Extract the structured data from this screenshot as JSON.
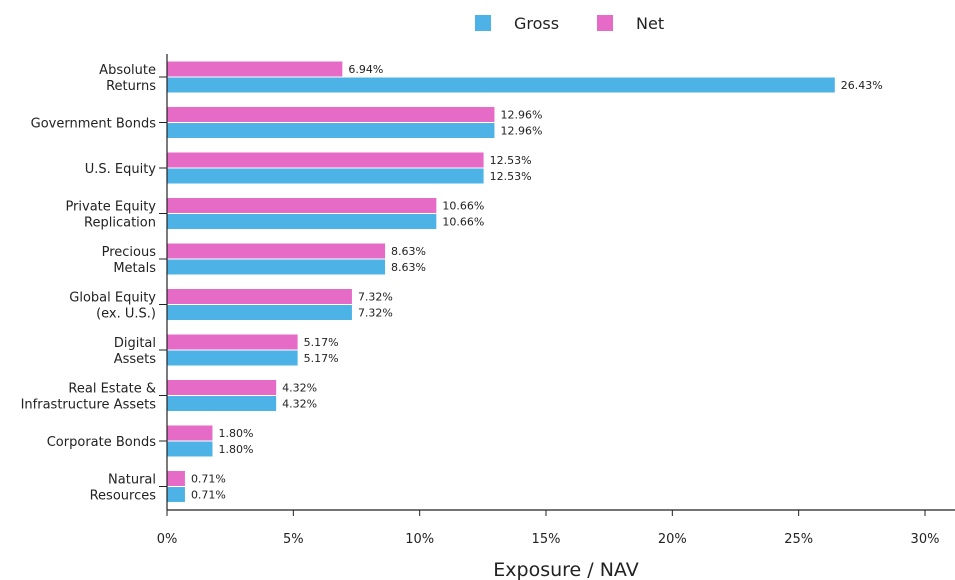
{
  "chart_data": {
    "type": "bar",
    "orientation": "horizontal",
    "categories": [
      [
        "Absolute",
        "Returns"
      ],
      [
        "Government Bonds"
      ],
      [
        "U.S. Equity"
      ],
      [
        "Private Equity",
        "Replication"
      ],
      [
        "Precious",
        "Metals"
      ],
      [
        "Global Equity",
        "(ex. U.S.)"
      ],
      [
        "Digital",
        "Assets"
      ],
      [
        "Real Estate &",
        "Infrastructure Assets"
      ],
      [
        "Corporate Bonds"
      ],
      [
        "Natural",
        "Resources"
      ]
    ],
    "series": [
      {
        "name": "Gross",
        "color": "#4db3e6",
        "values": [
          26.43,
          12.96,
          12.53,
          10.66,
          8.63,
          7.32,
          5.17,
          4.32,
          1.8,
          0.71
        ]
      },
      {
        "name": "Net",
        "color": "#e66bc7",
        "values": [
          6.94,
          12.96,
          12.53,
          10.66,
          8.63,
          7.32,
          5.17,
          4.32,
          1.8,
          0.71
        ]
      }
    ],
    "xlabel": "Exposure / NAV",
    "ylabel": "",
    "xlim": [
      0,
      30
    ],
    "xticks": [
      0,
      5,
      10,
      15,
      20,
      25,
      30
    ],
    "xtick_labels": [
      "0%",
      "5%",
      "10%",
      "15%",
      "20%",
      "25%",
      "30%"
    ],
    "value_suffix": "%",
    "grid": false,
    "legend_position": "top"
  }
}
